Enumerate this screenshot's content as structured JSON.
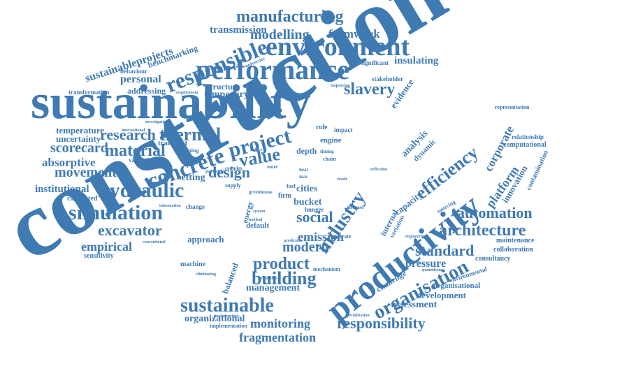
{
  "color": "#3f7ab3",
  "words": [
    {
      "text": "construction"
    },
    {
      "text": "sustainability"
    },
    {
      "text": "productivity"
    },
    {
      "text": "performance"
    },
    {
      "text": "environment"
    },
    {
      "text": "manufacturing"
    },
    {
      "text": "transmission"
    },
    {
      "text": "formwork"
    },
    {
      "text": "modelling"
    },
    {
      "text": "responsible"
    },
    {
      "text": "sustainableprojects"
    },
    {
      "text": "benchmarking"
    },
    {
      "text": "insulating"
    },
    {
      "text": "slavery"
    },
    {
      "text": "evidence"
    },
    {
      "text": "personal"
    },
    {
      "text": "behaviour"
    },
    {
      "text": "stakeholder"
    },
    {
      "text": "significant"
    },
    {
      "text": "structure"
    },
    {
      "text": "temporary"
    },
    {
      "text": "addressing"
    },
    {
      "text": "transformation"
    },
    {
      "text": "requirement"
    },
    {
      "text": "research"
    },
    {
      "text": "thermal"
    },
    {
      "text": "project"
    },
    {
      "text": "temperature"
    },
    {
      "text": "uncertainty"
    },
    {
      "text": "scorecard"
    },
    {
      "text": "material"
    },
    {
      "text": "concrete"
    },
    {
      "text": "value"
    },
    {
      "text": "absorptive"
    },
    {
      "text": "movement"
    },
    {
      "text": "design"
    },
    {
      "text": "institutional"
    },
    {
      "text": "hydraulic"
    },
    {
      "text": "calibrated"
    },
    {
      "text": "setting"
    },
    {
      "text": "simulation"
    },
    {
      "text": "excavator"
    },
    {
      "text": "empirical"
    },
    {
      "text": "sensitivity"
    },
    {
      "text": "industry"
    },
    {
      "text": "efficiency"
    },
    {
      "text": "corporate"
    },
    {
      "text": "platform"
    },
    {
      "text": "innovation"
    },
    {
      "text": "representation"
    },
    {
      "text": "relationship"
    },
    {
      "text": "computational"
    },
    {
      "text": "contamination"
    },
    {
      "text": "automation"
    },
    {
      "text": "architecture"
    },
    {
      "text": "capacity"
    },
    {
      "text": "analysis"
    },
    {
      "text": "dynamic"
    },
    {
      "text": "social"
    },
    {
      "text": "emission"
    },
    {
      "text": "cities"
    },
    {
      "text": "modern"
    },
    {
      "text": "standard"
    },
    {
      "text": "maintenance"
    },
    {
      "text": "collaboration"
    },
    {
      "text": "consultancy"
    },
    {
      "text": "pressure"
    },
    {
      "text": "environmental"
    },
    {
      "text": "organisation"
    },
    {
      "text": "challenge"
    },
    {
      "text": "organisational"
    },
    {
      "text": "development"
    },
    {
      "text": "assessment"
    },
    {
      "text": "product"
    },
    {
      "text": "building"
    },
    {
      "text": "management"
    },
    {
      "text": "machine"
    },
    {
      "text": "balanced"
    },
    {
      "text": "sustainable"
    },
    {
      "text": "organizational"
    },
    {
      "text": "implementation"
    },
    {
      "text": "monitoring"
    },
    {
      "text": "responsibility"
    },
    {
      "text": "fragmentation"
    },
    {
      "text": "approach"
    },
    {
      "text": "default"
    },
    {
      "text": "energy"
    },
    {
      "text": "bucket"
    },
    {
      "text": "hunger"
    },
    {
      "text": "role"
    },
    {
      "text": "firm"
    },
    {
      "text": "impact"
    },
    {
      "text": "engine"
    },
    {
      "text": "depth"
    },
    {
      "text": "chain"
    },
    {
      "text": "private"
    },
    {
      "text": "specialization"
    },
    {
      "text": "mechanism"
    },
    {
      "text": "increase"
    },
    {
      "text": "internal"
    },
    {
      "text": "variation"
    },
    {
      "text": "sourcing"
    },
    {
      "text": "engineering"
    },
    {
      "text": "change"
    },
    {
      "text": "information"
    },
    {
      "text": "transient"
    },
    {
      "text": "learning"
    },
    {
      "text": "validation"
    },
    {
      "text": "international"
    },
    {
      "text": "conventional"
    },
    {
      "text": "particular"
    },
    {
      "text": "supply"
    },
    {
      "text": "timing"
    },
    {
      "text": "university"
    },
    {
      "text": "investigation"
    },
    {
      "text": "fuel"
    },
    {
      "text": "result"
    },
    {
      "text": "implementing"
    },
    {
      "text": "eliminating"
    },
    {
      "text": "more"
    },
    {
      "text": "greenhouse"
    },
    {
      "text": "heat"
    },
    {
      "text": "mas"
    },
    {
      "text": "complex"
    },
    {
      "text": "reduce"
    },
    {
      "text": "improving"
    },
    {
      "text": "quantifying"
    },
    {
      "text": "reflection"
    },
    {
      "text": "method"
    },
    {
      "text": "system"
    },
    {
      "text": "prediction"
    },
    {
      "text": "evaluation"
    }
  ]
}
